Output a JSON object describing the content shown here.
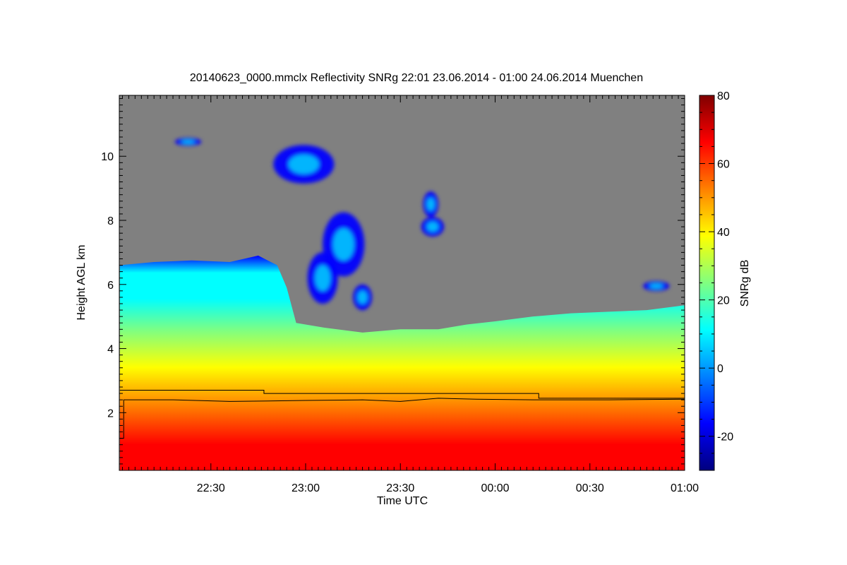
{
  "chart_data": {
    "type": "heatmap",
    "title": "20140623_0000.mmclx Reflectivity SNRg   22:01 23.06.2014 - 01:00 24.06.2014 Muenchen",
    "xlabel": "Time UTC",
    "ylabel": "Height AGL km",
    "x_range_hours": [
      22.0167,
      25.0
    ],
    "y_range_km": [
      0.2,
      11.9
    ],
    "x_ticks": [
      {
        "value": 22.5,
        "label": "22:30"
      },
      {
        "value": 23.0,
        "label": "23:00"
      },
      {
        "value": 23.5,
        "label": "23:30"
      },
      {
        "value": 24.0,
        "label": "00:00"
      },
      {
        "value": 24.5,
        "label": "00:30"
      },
      {
        "value": 25.0,
        "label": "01:00"
      }
    ],
    "y_ticks": [
      {
        "value": 2,
        "label": "2"
      },
      {
        "value": 4,
        "label": "4"
      },
      {
        "value": 6,
        "label": "6"
      },
      {
        "value": 8,
        "label": "8"
      },
      {
        "value": 10,
        "label": "10"
      }
    ],
    "no_signal_color": "#808080",
    "colorbar": {
      "label": "SNRg dB",
      "range": [
        -30,
        80
      ],
      "ticks": [
        {
          "value": -20,
          "label": "-20"
        },
        {
          "value": 0,
          "label": "0"
        },
        {
          "value": 20,
          "label": "20"
        },
        {
          "value": 40,
          "label": "40"
        },
        {
          "value": 60,
          "label": "60"
        },
        {
          "value": 80,
          "label": "80"
        }
      ],
      "colors": [
        "#00007f",
        "#0000ff",
        "#0080ff",
        "#00ffff",
        "#80ff80",
        "#ffff00",
        "#ff8000",
        "#ff0000",
        "#7f0000"
      ]
    },
    "echo_top_km": [
      [
        22.02,
        6.6
      ],
      [
        22.2,
        6.7
      ],
      [
        22.4,
        6.75
      ],
      [
        22.6,
        6.7
      ],
      [
        22.75,
        6.9
      ],
      [
        22.85,
        6.6
      ],
      [
        22.9,
        5.9
      ],
      [
        22.95,
        4.8
      ],
      [
        23.1,
        4.65
      ],
      [
        23.3,
        4.5
      ],
      [
        23.5,
        4.6
      ],
      [
        23.7,
        4.6
      ],
      [
        23.85,
        4.75
      ],
      [
        24.0,
        4.85
      ],
      [
        24.2,
        5.0
      ],
      [
        24.4,
        5.1
      ],
      [
        24.6,
        5.15
      ],
      [
        24.8,
        5.2
      ],
      [
        25.0,
        5.35
      ]
    ],
    "clouds": [
      {
        "t": 22.99,
        "h": 9.75,
        "rt": 0.16,
        "rh": 0.6
      },
      {
        "t": 23.2,
        "h": 7.25,
        "rt": 0.11,
        "rh": 1.0
      },
      {
        "t": 23.09,
        "h": 6.2,
        "rt": 0.08,
        "rh": 0.8
      },
      {
        "t": 23.3,
        "h": 5.6,
        "rt": 0.05,
        "rh": 0.4
      },
      {
        "t": 23.67,
        "h": 7.8,
        "rt": 0.06,
        "rh": 0.3
      },
      {
        "t": 23.66,
        "h": 8.5,
        "rt": 0.04,
        "rh": 0.4
      },
      {
        "t": 22.38,
        "h": 10.45,
        "rt": 0.07,
        "rh": 0.12
      },
      {
        "t": 24.85,
        "h": 5.95,
        "rt": 0.07,
        "rh": 0.15
      }
    ],
    "lines": [
      {
        "name": "",
        "points": [
          [
            22.02,
            2.7
          ],
          [
            22.78,
            2.7
          ],
          [
            22.78,
            2.6
          ],
          [
            24.23,
            2.6
          ],
          [
            24.23,
            2.45
          ],
          [
            25.0,
            2.45
          ]
        ]
      },
      {
        "name": "",
        "points": [
          [
            22.02,
            1.2
          ],
          [
            22.04,
            1.2
          ],
          [
            22.04,
            2.4
          ],
          [
            22.3,
            2.4
          ],
          [
            22.6,
            2.35
          ],
          [
            23.0,
            2.38
          ],
          [
            23.3,
            2.4
          ],
          [
            23.5,
            2.35
          ],
          [
            23.7,
            2.45
          ],
          [
            23.9,
            2.42
          ],
          [
            24.2,
            2.4
          ],
          [
            24.6,
            2.4
          ],
          [
            25.0,
            2.42
          ]
        ]
      }
    ]
  }
}
